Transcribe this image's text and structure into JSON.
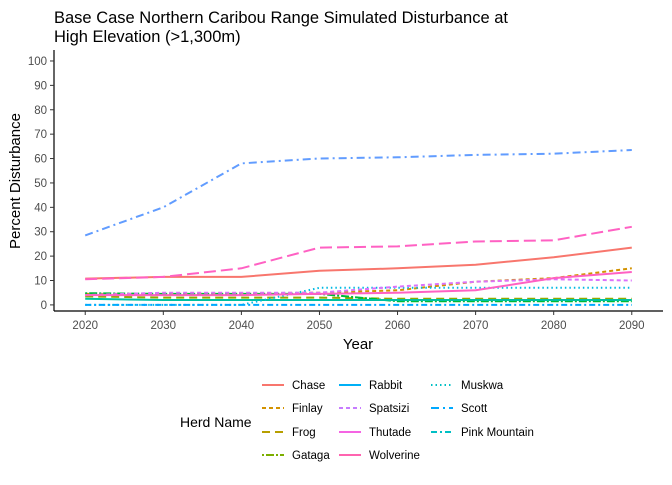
{
  "chart_data": {
    "type": "line",
    "title_line1": "Base Case Northern Caribou Range Simulated Disturbance at",
    "title_line2": "High Elevation (>1,300m)",
    "xlabel": "Year",
    "ylabel": "Percent Disturbance",
    "xlim": [
      2016,
      2094
    ],
    "ylim": [
      -2.5,
      104.5
    ],
    "x_ticks": [
      2020,
      2030,
      2040,
      2050,
      2060,
      2070,
      2080,
      2090
    ],
    "y_ticks": [
      0,
      10,
      20,
      30,
      40,
      50,
      60,
      70,
      80,
      90,
      100
    ],
    "grid": false,
    "legend_title": "Herd Name",
    "legend_position": "bottom",
    "x": [
      2020,
      2030,
      2040,
      2050,
      2060,
      2070,
      2080,
      2090
    ],
    "series": [
      {
        "name": "Chase",
        "color": "#F8766D",
        "dash": "",
        "values": [
          10.8,
          11.5,
          11.5,
          14,
          15,
          16.5,
          19.5,
          23.5
        ]
      },
      {
        "name": "Finlay",
        "color": "#D39200",
        "dash": "4 3",
        "values": [
          4.5,
          4.5,
          4.8,
          5,
          6,
          9.5,
          11,
          15
        ]
      },
      {
        "name": "Frog",
        "color": "#93AA00",
        "dash": "8 5",
        "values": [
          3.5,
          3,
          3,
          3,
          2.5,
          2.5,
          2.5,
          2.5
        ]
      },
      {
        "name": "Gataga",
        "color": "#00BA38",
        "dash": "2 2 8 2",
        "values": [
          4.8,
          4.5,
          4.5,
          4.5,
          1.5,
          1.5,
          1.5,
          1.5
        ]
      },
      {
        "name": "Rabbit",
        "color": "#00C19F",
        "dash": "",
        "values": [
          2.5,
          2,
          2,
          2,
          2,
          2,
          2,
          2
        ]
      },
      {
        "name": "Spatsizi",
        "color": "#00B9E3",
        "dash": "1.5 3",
        "values": [
          0,
          0,
          0,
          7,
          7,
          7,
          7,
          7
        ]
      },
      {
        "name": "Thutade",
        "color": "#619CFF",
        "dash": "8 4 2 4",
        "values": [
          28.5,
          40,
          58,
          60,
          60.5,
          61.5,
          62,
          63.5
        ]
      },
      {
        "name": "Wolverine",
        "color": "#DB72FB",
        "dash": "4 3",
        "values": [
          4,
          5,
          5,
          5,
          7.5,
          9.5,
          10.5,
          10
        ]
      },
      {
        "name": "Muskwa",
        "color": "#FF61C3",
        "dash": "",
        "values": [
          4,
          4,
          4,
          4.5,
          5,
          6,
          11,
          13.5
        ]
      },
      {
        "name": "Scott",
        "color": "#FF61C3",
        "dash": "12 5",
        "values": [
          10.5,
          11.5,
          15,
          23.5,
          24,
          26,
          26.5,
          32
        ]
      },
      {
        "name": "Pink Mountain",
        "color": "#00A9FF",
        "dash": "6 3 2 3",
        "values": [
          0,
          0,
          0,
          0,
          0,
          0,
          0,
          0
        ]
      }
    ],
    "legend_entries": [
      {
        "name": "Chase",
        "color": "#F8766D",
        "dash": ""
      },
      {
        "name": "Finlay",
        "color": "#D39200",
        "dash": "4 3"
      },
      {
        "name": "Frog",
        "color": "#B79F00",
        "dash": "8 5"
      },
      {
        "name": "Gataga",
        "color": "#7CAE00",
        "dash": "2 2 8 2"
      },
      {
        "name": "Rabbit",
        "color": "#00B0F6",
        "dash": ""
      },
      {
        "name": "Spatsizi",
        "color": "#C77CFF",
        "dash": "4 3"
      },
      {
        "name": "Thutade",
        "color": "#F564E3",
        "dash": ""
      },
      {
        "name": "Wolverine",
        "color": "#FF64B0",
        "dash": ""
      },
      {
        "name": "Muskwa",
        "color": "#00BFC4",
        "dash": "1.5 3"
      },
      {
        "name": "Scott",
        "color": "#00A9FF",
        "dash": "8 4 2 4"
      },
      {
        "name": "Pink Mountain",
        "color": "#00BFC4",
        "dash": "6 3 2 3"
      }
    ]
  }
}
